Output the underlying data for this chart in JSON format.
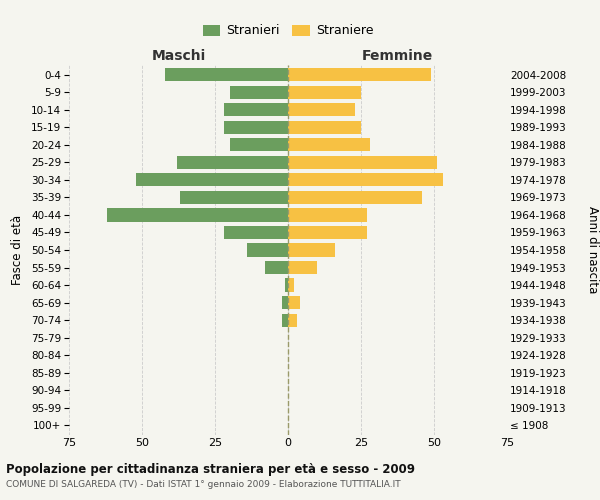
{
  "age_groups": [
    "100+",
    "95-99",
    "90-94",
    "85-89",
    "80-84",
    "75-79",
    "70-74",
    "65-69",
    "60-64",
    "55-59",
    "50-54",
    "45-49",
    "40-44",
    "35-39",
    "30-34",
    "25-29",
    "20-24",
    "15-19",
    "10-14",
    "5-9",
    "0-4"
  ],
  "birth_years": [
    "≤ 1908",
    "1909-1913",
    "1914-1918",
    "1919-1923",
    "1924-1928",
    "1929-1933",
    "1934-1938",
    "1939-1943",
    "1944-1948",
    "1949-1953",
    "1954-1958",
    "1959-1963",
    "1964-1968",
    "1969-1973",
    "1974-1978",
    "1979-1983",
    "1984-1988",
    "1989-1993",
    "1994-1998",
    "1999-2003",
    "2004-2008"
  ],
  "maschi": [
    0,
    0,
    0,
    0,
    0,
    0,
    2,
    2,
    1,
    8,
    14,
    22,
    62,
    37,
    52,
    38,
    20,
    22,
    22,
    20,
    42
  ],
  "femmine": [
    0,
    0,
    0,
    0,
    0,
    0,
    3,
    4,
    2,
    10,
    16,
    27,
    27,
    46,
    53,
    51,
    28,
    25,
    23,
    25,
    49
  ],
  "male_color": "#6b9e5e",
  "female_color": "#f7c143",
  "male_label": "Stranieri",
  "female_label": "Straniere",
  "maschi_title": "Maschi",
  "femmine_title": "Femmine",
  "left_ylabel": "Fasce di età",
  "right_ylabel": "Anni di nascita",
  "xlim": 75,
  "title": "Popolazione per cittadinanza straniera per età e sesso - 2009",
  "subtitle": "COMUNE DI SALGAREDA (TV) - Dati ISTAT 1° gennaio 2009 - Elaborazione TUTTITALIA.IT",
  "bg_color": "#f5f5ef",
  "grid_color": "#cccccc",
  "bar_height": 0.75
}
